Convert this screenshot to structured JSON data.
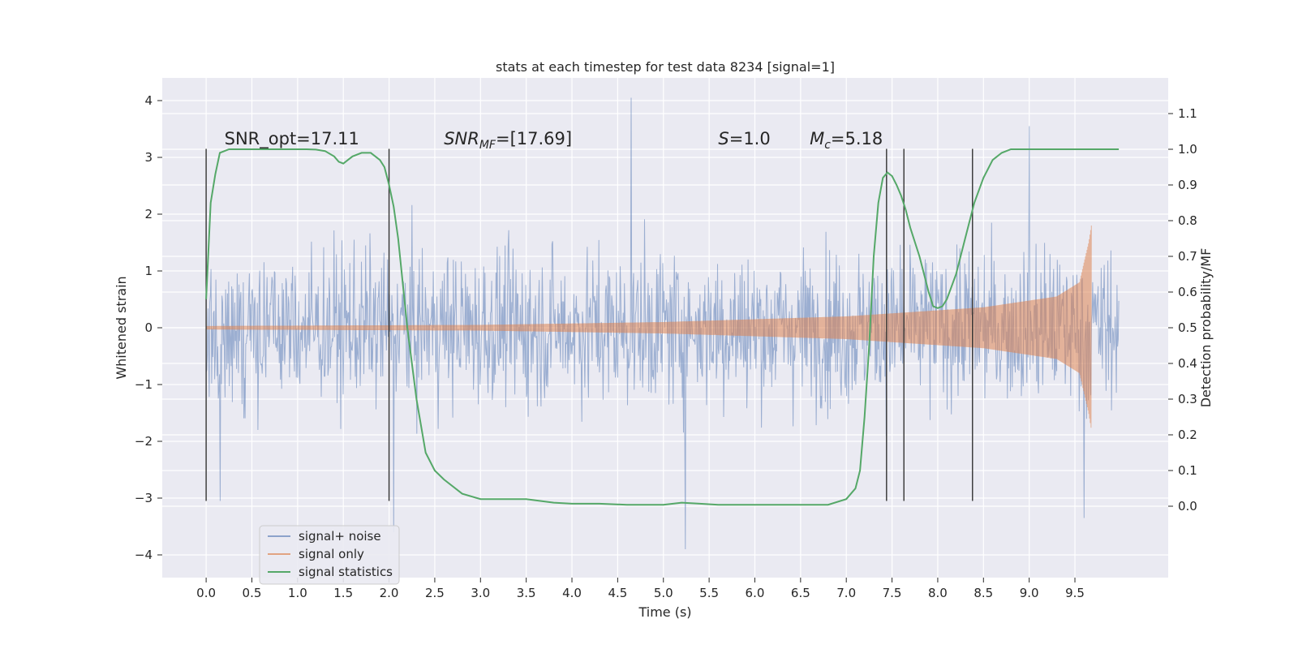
{
  "chart_data": {
    "type": "line",
    "title": "stats at each timestep for test data 8234 [signal=1]",
    "xlabel": "Time (s)",
    "ylabel": "Whitened strain",
    "y2label": "Detection probability/MF",
    "xlim": [
      -0.48,
      10.52
    ],
    "ylim": [
      -4.4,
      4.4
    ],
    "y2lim": [
      -0.2,
      1.2
    ],
    "xticks": [
      "0.0",
      "0.5",
      "1.0",
      "1.5",
      "2.0",
      "2.5",
      "3.0",
      "3.5",
      "4.0",
      "4.5",
      "5.0",
      "5.5",
      "6.0",
      "6.5",
      "7.0",
      "7.5",
      "8.0",
      "8.5",
      "9.0",
      "9.5"
    ],
    "yticks": [
      "4",
      "3",
      "2",
      "1",
      "0",
      "−1",
      "−2",
      "−3",
      "−4"
    ],
    "y2ticks": [
      "1.1",
      "1.0",
      "0.9",
      "0.8",
      "0.7",
      "0.6",
      "0.5",
      "0.4",
      "0.3",
      "0.2",
      "0.1",
      "0.0"
    ],
    "grid": true,
    "legend_position": "lower-left",
    "annotations": [
      {
        "text": "SNR_opt=17.11",
        "x": 0.2
      },
      {
        "text": "SNR",
        "sub": "MF",
        "suffix": "=[17.69]",
        "x": 2.6
      },
      {
        "text": "S",
        "suffix": "=1.0",
        "x": 5.6
      },
      {
        "text": "M",
        "sub": "c",
        "suffix": "=5.18",
        "x": 6.6
      }
    ],
    "vertical_lines_x": [
      0.0,
      2.0,
      7.44,
      7.63,
      8.38
    ],
    "vertical_lines_y_range": [
      -3.05,
      3.15
    ],
    "colors": {
      "background": "#EAEAF2",
      "grid": "#FFFFFF",
      "noise": "#4C72B0",
      "signal": "#DD8452",
      "stats": "#55A868",
      "vlines": "#333333"
    },
    "series": [
      {
        "name": "signal+ noise",
        "color": "#4C72B0",
        "axis": "left",
        "x_range": [
          0.0,
          9.98
        ],
        "envelope_typical": [
          -2.5,
          2.7
        ],
        "extremes": [
          {
            "x": 4.65,
            "y": 4.05
          },
          {
            "x": 5.24,
            "y": -3.9
          },
          {
            "x": 2.05,
            "y": -3.6
          },
          {
            "x": 9.0,
            "y": 3.55
          },
          {
            "x": 9.6,
            "y": -3.35
          },
          {
            "x": 0.15,
            "y": -3.05
          }
        ]
      },
      {
        "name": "signal only",
        "color": "#DD8452",
        "axis": "left",
        "x_range": [
          0.0,
          9.68
        ],
        "type": "chirp",
        "amplitude_points": [
          [
            0.0,
            0.03
          ],
          [
            3.0,
            0.05
          ],
          [
            5.0,
            0.1
          ],
          [
            7.0,
            0.2
          ],
          [
            8.5,
            0.36
          ],
          [
            9.3,
            0.55
          ],
          [
            9.55,
            0.8
          ],
          [
            9.65,
            1.5
          ],
          [
            9.68,
            1.8
          ]
        ]
      },
      {
        "name": "signal statistics",
        "color": "#55A868",
        "axis": "right",
        "x": [
          0.0,
          0.05,
          0.1,
          0.15,
          0.25,
          0.4,
          0.6,
          0.8,
          1.0,
          1.1,
          1.2,
          1.3,
          1.4,
          1.45,
          1.5,
          1.55,
          1.6,
          1.7,
          1.8,
          1.9,
          1.95,
          2.0,
          2.05,
          2.1,
          2.2,
          2.3,
          2.4,
          2.5,
          2.6,
          2.8,
          3.0,
          3.2,
          3.5,
          3.8,
          4.0,
          4.3,
          4.6,
          4.9,
          5.0,
          5.2,
          5.4,
          5.6,
          5.8,
          6.0,
          6.4,
          6.8,
          7.0,
          7.1,
          7.15,
          7.2,
          7.25,
          7.3,
          7.35,
          7.4,
          7.45,
          7.5,
          7.55,
          7.6,
          7.65,
          7.7,
          7.8,
          7.9,
          7.95,
          8.0,
          8.05,
          8.1,
          8.2,
          8.3,
          8.4,
          8.5,
          8.6,
          8.7,
          8.8,
          9.0,
          9.5,
          9.98
        ],
        "values": [
          0.58,
          0.85,
          0.93,
          0.99,
          1.0,
          1.0,
          1.0,
          1.0,
          1.0,
          1.0,
          0.999,
          0.995,
          0.98,
          0.965,
          0.96,
          0.97,
          0.98,
          0.99,
          0.99,
          0.97,
          0.95,
          0.9,
          0.84,
          0.75,
          0.5,
          0.3,
          0.15,
          0.1,
          0.075,
          0.035,
          0.02,
          0.02,
          0.02,
          0.01,
          0.007,
          0.007,
          0.004,
          0.004,
          0.004,
          0.01,
          0.007,
          0.004,
          0.004,
          0.004,
          0.004,
          0.004,
          0.02,
          0.05,
          0.1,
          0.25,
          0.45,
          0.7,
          0.85,
          0.92,
          0.935,
          0.925,
          0.9,
          0.87,
          0.83,
          0.78,
          0.7,
          0.6,
          0.56,
          0.555,
          0.56,
          0.58,
          0.65,
          0.75,
          0.85,
          0.92,
          0.97,
          0.99,
          1.0,
          1.0,
          1.0,
          1.0
        ]
      }
    ]
  }
}
